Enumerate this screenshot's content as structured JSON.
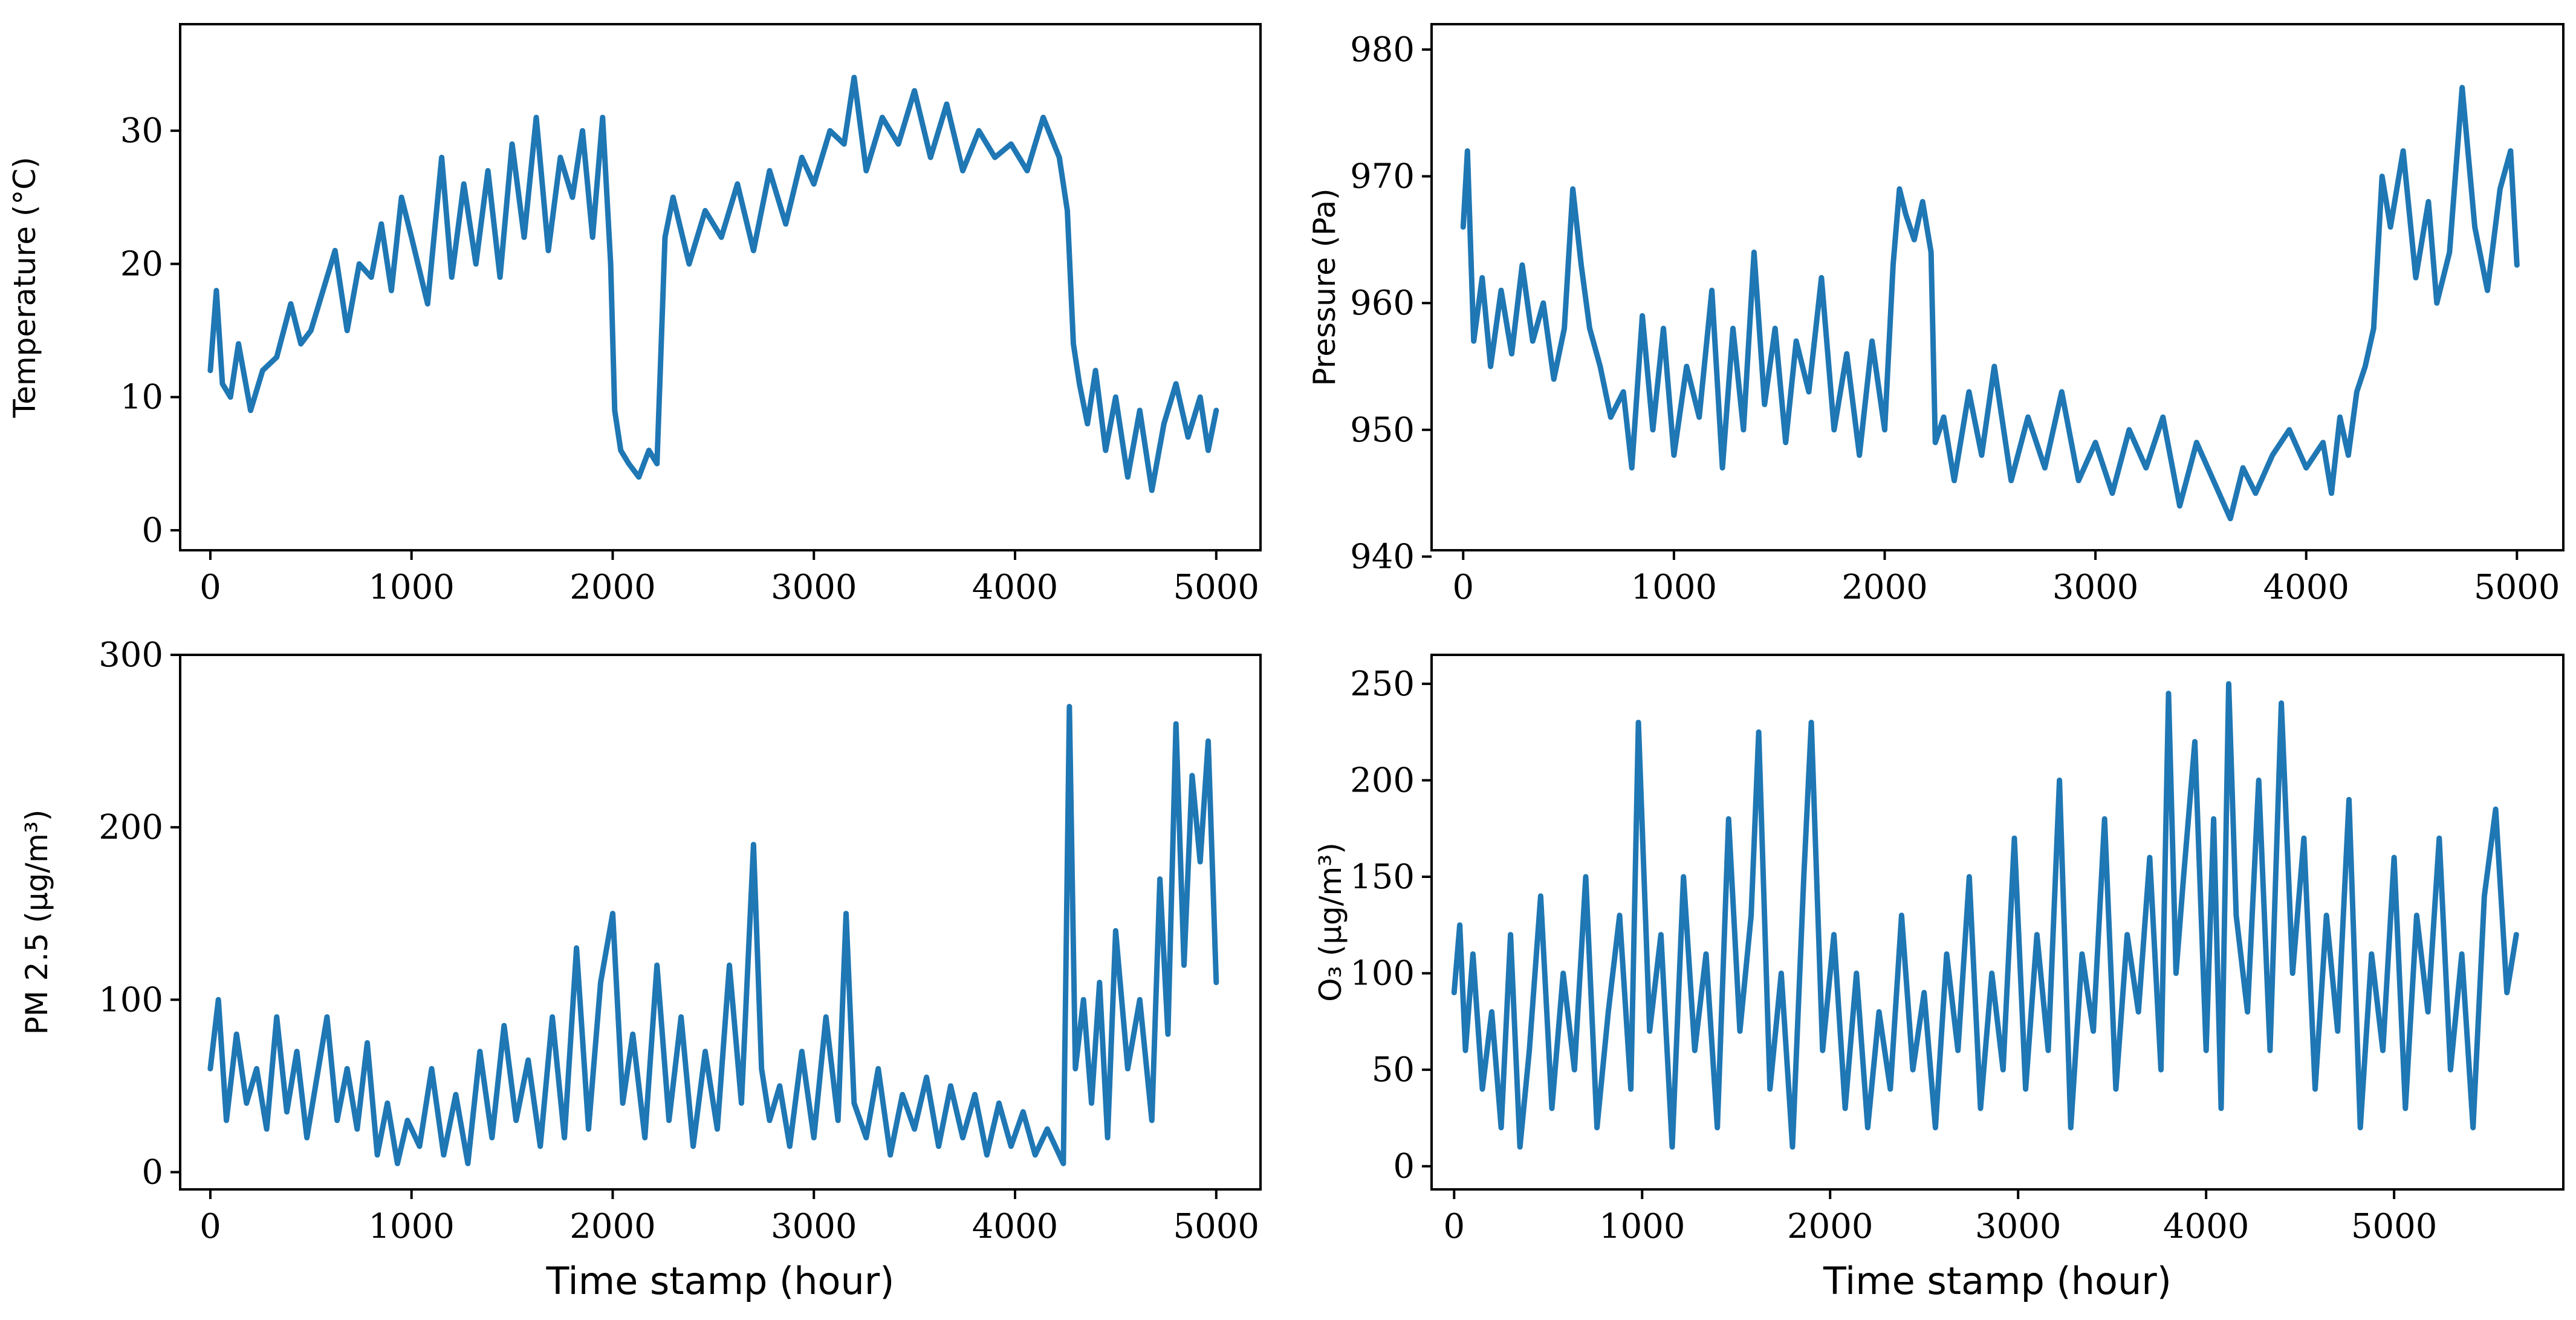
{
  "figure": {
    "line_color": "#1f77b4"
  },
  "chart_data": [
    {
      "type": "line",
      "title": "",
      "xlabel": "",
      "ylabel": "Temperature (°C)",
      "xlim": [
        -150,
        5220
      ],
      "ylim": [
        -1.5,
        38
      ],
      "xticks": [
        0,
        1000,
        2000,
        3000,
        4000,
        5000
      ],
      "yticks": [
        0,
        10,
        20,
        30
      ],
      "grid": false,
      "series": [
        {
          "x": [
            0,
            30,
            60,
            100,
            140,
            200,
            260,
            330,
            400,
            450,
            500,
            560,
            620,
            680,
            740,
            800,
            850,
            900,
            950,
            1000,
            1080,
            1150,
            1200,
            1260,
            1320,
            1380,
            1440,
            1500,
            1560,
            1620,
            1680,
            1740,
            1800,
            1850,
            1900,
            1950,
            1990,
            2010,
            2040,
            2080,
            2130,
            2180,
            2220,
            2260,
            2300,
            2380,
            2460,
            2540,
            2620,
            2700,
            2780,
            2860,
            2940,
            3000,
            3080,
            3150,
            3200,
            3260,
            3340,
            3420,
            3500,
            3580,
            3660,
            3740,
            3820,
            3900,
            3980,
            4060,
            4140,
            4220,
            4260,
            4290,
            4320,
            4360,
            4400,
            4450,
            4500,
            4560,
            4620,
            4680,
            4740,
            4800,
            4860,
            4920,
            4960,
            5000
          ],
          "y": [
            12,
            18,
            11,
            10,
            14,
            9,
            12,
            13,
            17,
            14,
            15,
            18,
            21,
            15,
            20,
            19,
            23,
            18,
            25,
            22,
            17,
            28,
            19,
            26,
            20,
            27,
            19,
            29,
            22,
            31,
            21,
            28,
            25,
            30,
            22,
            31,
            20,
            9,
            6,
            5,
            4,
            6,
            5,
            22,
            25,
            20,
            24,
            22,
            26,
            21,
            27,
            23,
            28,
            26,
            30,
            29,
            34,
            27,
            31,
            29,
            33,
            28,
            32,
            27,
            30,
            28,
            29,
            27,
            31,
            28,
            24,
            14,
            11,
            8,
            12,
            6,
            10,
            4,
            9,
            3,
            8,
            11,
            7,
            10,
            6,
            9
          ]
        }
      ]
    },
    {
      "type": "line",
      "title": "",
      "xlabel": "",
      "ylabel": "Pressure (Pa)",
      "xlim": [
        -150,
        5220
      ],
      "ylim": [
        940.5,
        982
      ],
      "xticks": [
        0,
        1000,
        2000,
        3000,
        4000,
        5000
      ],
      "yticks": [
        940,
        950,
        960,
        970,
        980
      ],
      "grid": false,
      "series": [
        {
          "x": [
            0,
            20,
            50,
            90,
            130,
            180,
            230,
            280,
            330,
            380,
            430,
            480,
            520,
            560,
            600,
            650,
            700,
            760,
            800,
            850,
            900,
            950,
            1000,
            1060,
            1120,
            1180,
            1230,
            1280,
            1330,
            1380,
            1430,
            1480,
            1530,
            1580,
            1640,
            1700,
            1760,
            1820,
            1880,
            1940,
            2000,
            2040,
            2070,
            2100,
            2140,
            2180,
            2220,
            2240,
            2280,
            2330,
            2400,
            2460,
            2520,
            2600,
            2680,
            2760,
            2840,
            2920,
            3000,
            3080,
            3160,
            3240,
            3320,
            3400,
            3480,
            3560,
            3640,
            3700,
            3760,
            3840,
            3920,
            4000,
            4080,
            4120,
            4160,
            4200,
            4240,
            4280,
            4320,
            4360,
            4400,
            4460,
            4520,
            4580,
            4620,
            4680,
            4740,
            4800,
            4860,
            4920,
            4970,
            5000
          ],
          "y": [
            966,
            972,
            957,
            962,
            955,
            961,
            956,
            963,
            957,
            960,
            954,
            958,
            969,
            963,
            958,
            955,
            951,
            953,
            947,
            959,
            950,
            958,
            948,
            955,
            951,
            961,
            947,
            958,
            950,
            964,
            952,
            958,
            949,
            957,
            953,
            962,
            950,
            956,
            948,
            957,
            950,
            963,
            969,
            967,
            965,
            968,
            964,
            949,
            951,
            946,
            953,
            948,
            955,
            946,
            951,
            947,
            953,
            946,
            949,
            945,
            950,
            947,
            951,
            944,
            949,
            946,
            943,
            947,
            945,
            948,
            950,
            947,
            949,
            945,
            951,
            948,
            953,
            955,
            958,
            970,
            966,
            972,
            962,
            968,
            960,
            964,
            977,
            966,
            961,
            969,
            972,
            963
          ]
        }
      ]
    },
    {
      "type": "line",
      "title": "",
      "xlabel": "Time stamp (hour)",
      "ylabel": "PM 2.5 (μg/m³)",
      "xlim": [
        -150,
        5220
      ],
      "ylim": [
        -10,
        300
      ],
      "xticks": [
        0,
        1000,
        2000,
        3000,
        4000,
        5000
      ],
      "yticks": [
        0,
        100,
        200,
        300
      ],
      "grid": false,
      "series": [
        {
          "x": [
            0,
            40,
            80,
            130,
            180,
            230,
            280,
            330,
            380,
            430,
            480,
            530,
            580,
            630,
            680,
            730,
            780,
            830,
            880,
            930,
            980,
            1040,
            1100,
            1160,
            1220,
            1280,
            1340,
            1400,
            1460,
            1520,
            1580,
            1640,
            1700,
            1760,
            1820,
            1880,
            1940,
            2000,
            2050,
            2100,
            2160,
            2220,
            2280,
            2340,
            2400,
            2460,
            2520,
            2580,
            2640,
            2700,
            2740,
            2780,
            2830,
            2880,
            2940,
            3000,
            3060,
            3120,
            3160,
            3200,
            3260,
            3320,
            3380,
            3440,
            3500,
            3560,
            3620,
            3680,
            3740,
            3800,
            3860,
            3920,
            3980,
            4040,
            4100,
            4160,
            4200,
            4240,
            4270,
            4300,
            4340,
            4380,
            4420,
            4460,
            4500,
            4560,
            4620,
            4680,
            4720,
            4760,
            4800,
            4840,
            4880,
            4920,
            4960,
            5000
          ],
          "y": [
            60,
            100,
            30,
            80,
            40,
            60,
            25,
            90,
            35,
            70,
            20,
            55,
            90,
            30,
            60,
            25,
            75,
            10,
            40,
            5,
            30,
            15,
            60,
            10,
            45,
            5,
            70,
            20,
            85,
            30,
            65,
            15,
            90,
            20,
            130,
            25,
            110,
            150,
            40,
            80,
            20,
            120,
            30,
            90,
            15,
            70,
            25,
            120,
            40,
            190,
            60,
            30,
            50,
            15,
            70,
            20,
            90,
            30,
            150,
            40,
            20,
            60,
            10,
            45,
            25,
            55,
            15,
            50,
            20,
            45,
            10,
            40,
            15,
            35,
            10,
            25,
            15,
            5,
            270,
            60,
            100,
            40,
            110,
            20,
            140,
            60,
            100,
            30,
            170,
            80,
            260,
            120,
            230,
            180,
            250,
            110
          ]
        }
      ]
    },
    {
      "type": "line",
      "title": "",
      "xlabel": "Time stamp (hour)",
      "ylabel": "O₃ (μg/m³)",
      "xlim": [
        -120,
        5900
      ],
      "ylim": [
        -12,
        265
      ],
      "xticks": [
        0,
        1000,
        2000,
        3000,
        4000,
        5000
      ],
      "yticks": [
        0,
        50,
        100,
        150,
        200,
        250
      ],
      "grid": false,
      "series": [
        {
          "x": [
            0,
            30,
            60,
            100,
            150,
            200,
            250,
            300,
            350,
            400,
            460,
            520,
            580,
            640,
            700,
            760,
            820,
            880,
            940,
            980,
            1040,
            1100,
            1160,
            1220,
            1280,
            1340,
            1400,
            1460,
            1520,
            1580,
            1620,
            1680,
            1740,
            1800,
            1860,
            1900,
            1960,
            2020,
            2080,
            2140,
            2200,
            2260,
            2320,
            2380,
            2440,
            2500,
            2560,
            2620,
            2680,
            2740,
            2800,
            2860,
            2920,
            2980,
            3040,
            3100,
            3160,
            3220,
            3280,
            3340,
            3400,
            3460,
            3520,
            3580,
            3640,
            3700,
            3760,
            3800,
            3840,
            3880,
            3940,
            4000,
            4040,
            4080,
            4120,
            4160,
            4220,
            4280,
            4340,
            4400,
            4460,
            4520,
            4580,
            4640,
            4700,
            4760,
            4820,
            4880,
            4940,
            5000,
            5060,
            5120,
            5180,
            5240,
            5300,
            5360,
            5420,
            5480,
            5540,
            5600,
            5650
          ],
          "y": [
            90,
            125,
            60,
            110,
            40,
            80,
            20,
            120,
            10,
            60,
            140,
            30,
            100,
            50,
            150,
            20,
            80,
            130,
            40,
            230,
            70,
            120,
            10,
            150,
            60,
            110,
            20,
            180,
            70,
            130,
            225,
            40,
            100,
            10,
            150,
            230,
            60,
            120,
            30,
            100,
            20,
            80,
            40,
            130,
            50,
            90,
            20,
            110,
            60,
            150,
            30,
            100,
            50,
            170,
            40,
            120,
            60,
            200,
            20,
            110,
            70,
            180,
            40,
            120,
            80,
            160,
            50,
            245,
            100,
            150,
            220,
            60,
            180,
            30,
            250,
            130,
            80,
            200,
            60,
            240,
            100,
            170,
            40,
            130,
            70,
            190,
            20,
            110,
            60,
            160,
            30,
            130,
            80,
            170,
            50,
            110,
            20,
            140,
            185,
            90,
            120
          ]
        }
      ]
    }
  ]
}
